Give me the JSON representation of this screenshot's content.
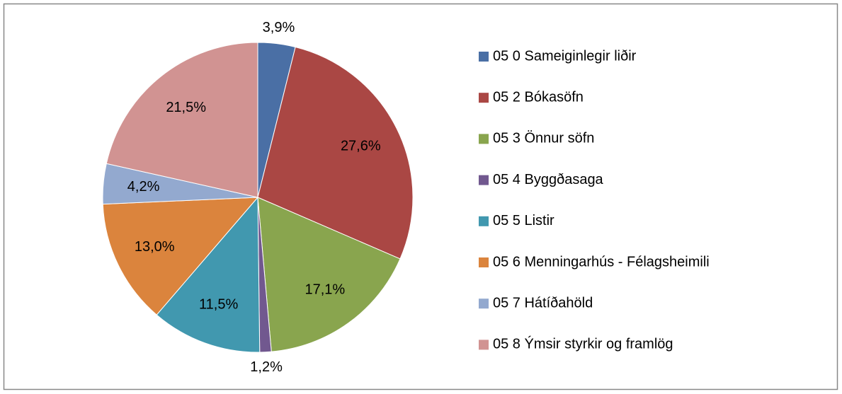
{
  "chart_data": {
    "type": "pie",
    "categories": [
      "05 0 Sameiginlegir liðir",
      "05 2 Bókasöfn",
      "05 3 Önnur söfn",
      "05 4 Byggðasaga",
      "05 5 Listir",
      "05 6 Menningarhús - Félagsheimili",
      "05 7 Hátíðahöld",
      "05 8 Ýmsir styrkir og framlög"
    ],
    "values": [
      3.9,
      27.6,
      17.1,
      1.2,
      11.5,
      13.0,
      4.2,
      21.5
    ],
    "value_labels": [
      "3,9%",
      "27,6%",
      "17,1%",
      "1,2%",
      "11,5%",
      "13,0%",
      "4,2%",
      "21,5%"
    ],
    "colors": [
      "#4a6fa5",
      "#aa4744",
      "#89a54e",
      "#71588f",
      "#4198af",
      "#db843d",
      "#93a9cf",
      "#d19392"
    ],
    "legend": "right"
  }
}
